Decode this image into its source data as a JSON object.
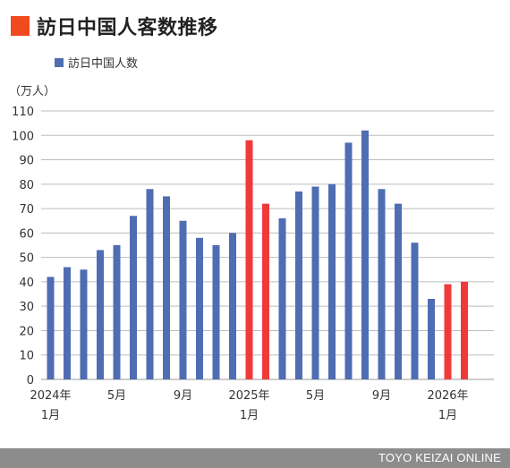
{
  "header": {
    "title": "訪日中国人客数推移"
  },
  "footer": {
    "credit": "TOYO KEIZAI ONLINE"
  },
  "colors": {
    "accent": "#f04a1e",
    "bar_default": "#4f6db2",
    "bar_highlight": "#f03a3a",
    "grid": "#bdbdbd"
  },
  "chart_data": {
    "type": "bar",
    "title": "訪日中国人客数推移",
    "ylabel": "（万人）",
    "xlabel": "",
    "ylim": [
      0,
      110
    ],
    "yticks": [
      0,
      10,
      20,
      30,
      40,
      50,
      60,
      70,
      80,
      90,
      100,
      110
    ],
    "grid": true,
    "legend": {
      "position": "top-left"
    },
    "series": [
      {
        "name": "訪日中国人数",
        "values": [
          42,
          46,
          45,
          53,
          55,
          67,
          78,
          75,
          65,
          58,
          55,
          60,
          98,
          72,
          66,
          77,
          79,
          80,
          97,
          102,
          78,
          72,
          56,
          33,
          39,
          40
        ],
        "highlight_indices": [
          12,
          13,
          24,
          25
        ]
      }
    ],
    "x_tick_labels": [
      {
        "index": 0,
        "lines": [
          "2024年",
          "1月"
        ]
      },
      {
        "index": 4,
        "lines": [
          "5月"
        ]
      },
      {
        "index": 8,
        "lines": [
          "9月"
        ]
      },
      {
        "index": 12,
        "lines": [
          "2025年",
          "1月"
        ]
      },
      {
        "index": 16,
        "lines": [
          "5月"
        ]
      },
      {
        "index": 20,
        "lines": [
          "9月"
        ]
      },
      {
        "index": 24,
        "lines": [
          "2026年",
          "1月"
        ]
      }
    ]
  }
}
